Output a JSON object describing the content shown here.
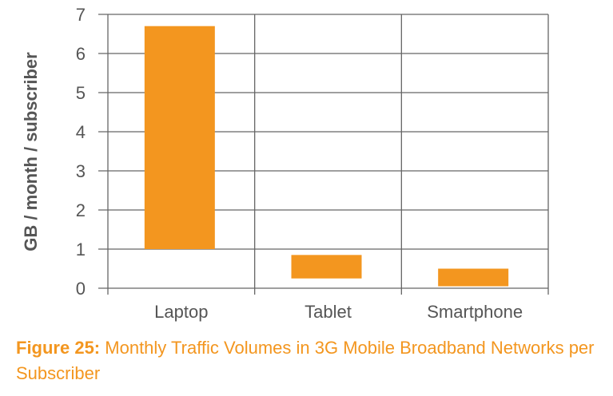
{
  "caption": {
    "label": "Figure 25:",
    "text": "Monthly Traffic Volumes in 3G Mobile Broadband Networks per Subscriber"
  },
  "colors": {
    "bar": "#f3961f",
    "grid": "#666666",
    "text": "#555555",
    "caption": "#f3961f"
  },
  "chart_data": {
    "type": "bar",
    "subtype": "floating-range",
    "categories": [
      "Laptop",
      "Tablet",
      "Smartphone"
    ],
    "series": [
      {
        "ranges": [
          [
            1.0,
            6.7
          ],
          [
            0.25,
            0.85
          ],
          [
            0.05,
            0.5
          ]
        ]
      }
    ],
    "ylabel": "GB / month / subscriber",
    "xlabel": "",
    "ylim": [
      0,
      7
    ],
    "yticks": [
      0,
      1,
      2,
      3,
      4,
      5,
      6,
      7
    ],
    "grid": true
  }
}
